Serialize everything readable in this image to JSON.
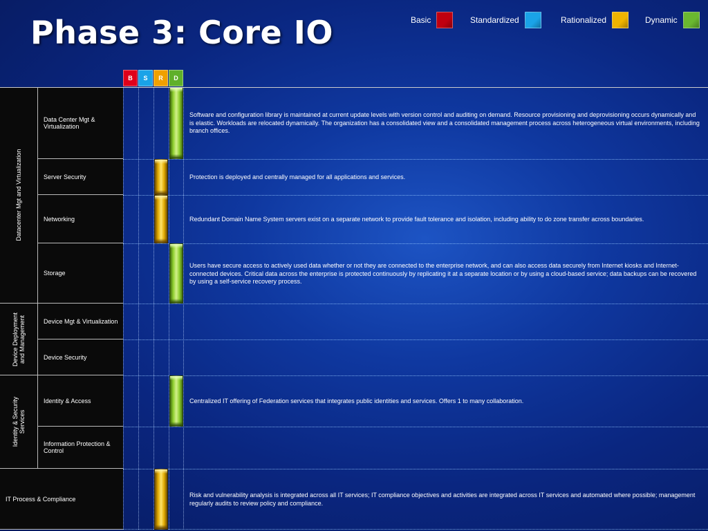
{
  "title": "Phase 3: Core IO",
  "legend": [
    {
      "label": "Basic",
      "color": "#c00010"
    },
    {
      "label": "Standardized",
      "color": "#1aa3e8"
    },
    {
      "label": "Rationalized",
      "color": "#f0b400"
    },
    {
      "label": "Dynamic",
      "color": "#6ab830"
    }
  ],
  "level_headers": [
    {
      "letter": "B",
      "color": "#e0001a"
    },
    {
      "letter": "S",
      "color": "#1aa3e8"
    },
    {
      "letter": "R",
      "color": "#f0a000"
    },
    {
      "letter": "D",
      "color": "#5fb02a"
    }
  ],
  "categories": [
    {
      "label": "Datacenter Mgt and Virtualization"
    },
    {
      "label": "Device Deployment and Management"
    },
    {
      "label": "Identity & Security Services"
    },
    {
      "label": "IT Process & Compliance"
    }
  ],
  "rows": [
    {
      "label": "Data Center Mgt & Virtualization",
      "level": "D",
      "description": "Software and configuration library is maintained at current update levels with version control and auditing on demand.    Resource provisioning and deprovisioning occurs dynamically and is elastic. Workloads are relocated dynamically. The organization has a consolidated view and a consolidated management process across heterogeneous virtual environments, including branch offices."
    },
    {
      "label": "Server Security",
      "level": "R",
      "description": "Protection is deployed and centrally managed for all applications and services."
    },
    {
      "label": "Networking",
      "level": "R",
      "description": "Redundant Domain Name System servers exist on a separate network to provide fault tolerance and isolation, including ability to do zone transfer across boundaries."
    },
    {
      "label": "Storage",
      "level": "D",
      "description": "Users have secure access to actively used data whether or not they are connected to the enterprise network, and can also access data securely from Internet kiosks and Internet-connected devices. Critical data across the enterprise is protected continuously by replicating it at a separate location or by using a cloud-based service; data backups can be recovered by using a self-service recovery process."
    },
    {
      "label": "Device Mgt & Virtualization",
      "level": "",
      "description": ""
    },
    {
      "label": "Device Security",
      "level": "",
      "description": ""
    },
    {
      "label": "Identity & Access",
      "level": "D",
      "description": "Centralized IT offering of Federation services that integrates public identities and services. Offers 1 to many collaboration."
    },
    {
      "label": "Information Protection & Control",
      "level": "",
      "description": ""
    },
    {
      "label": "IT Process & Compliance",
      "level": "R",
      "description": "Risk and vulnerability analysis is integrated across all IT services; IT compliance objectives and activities are integrated across IT services and automated where possible; management regularly audits to review policy and compliance."
    }
  ]
}
